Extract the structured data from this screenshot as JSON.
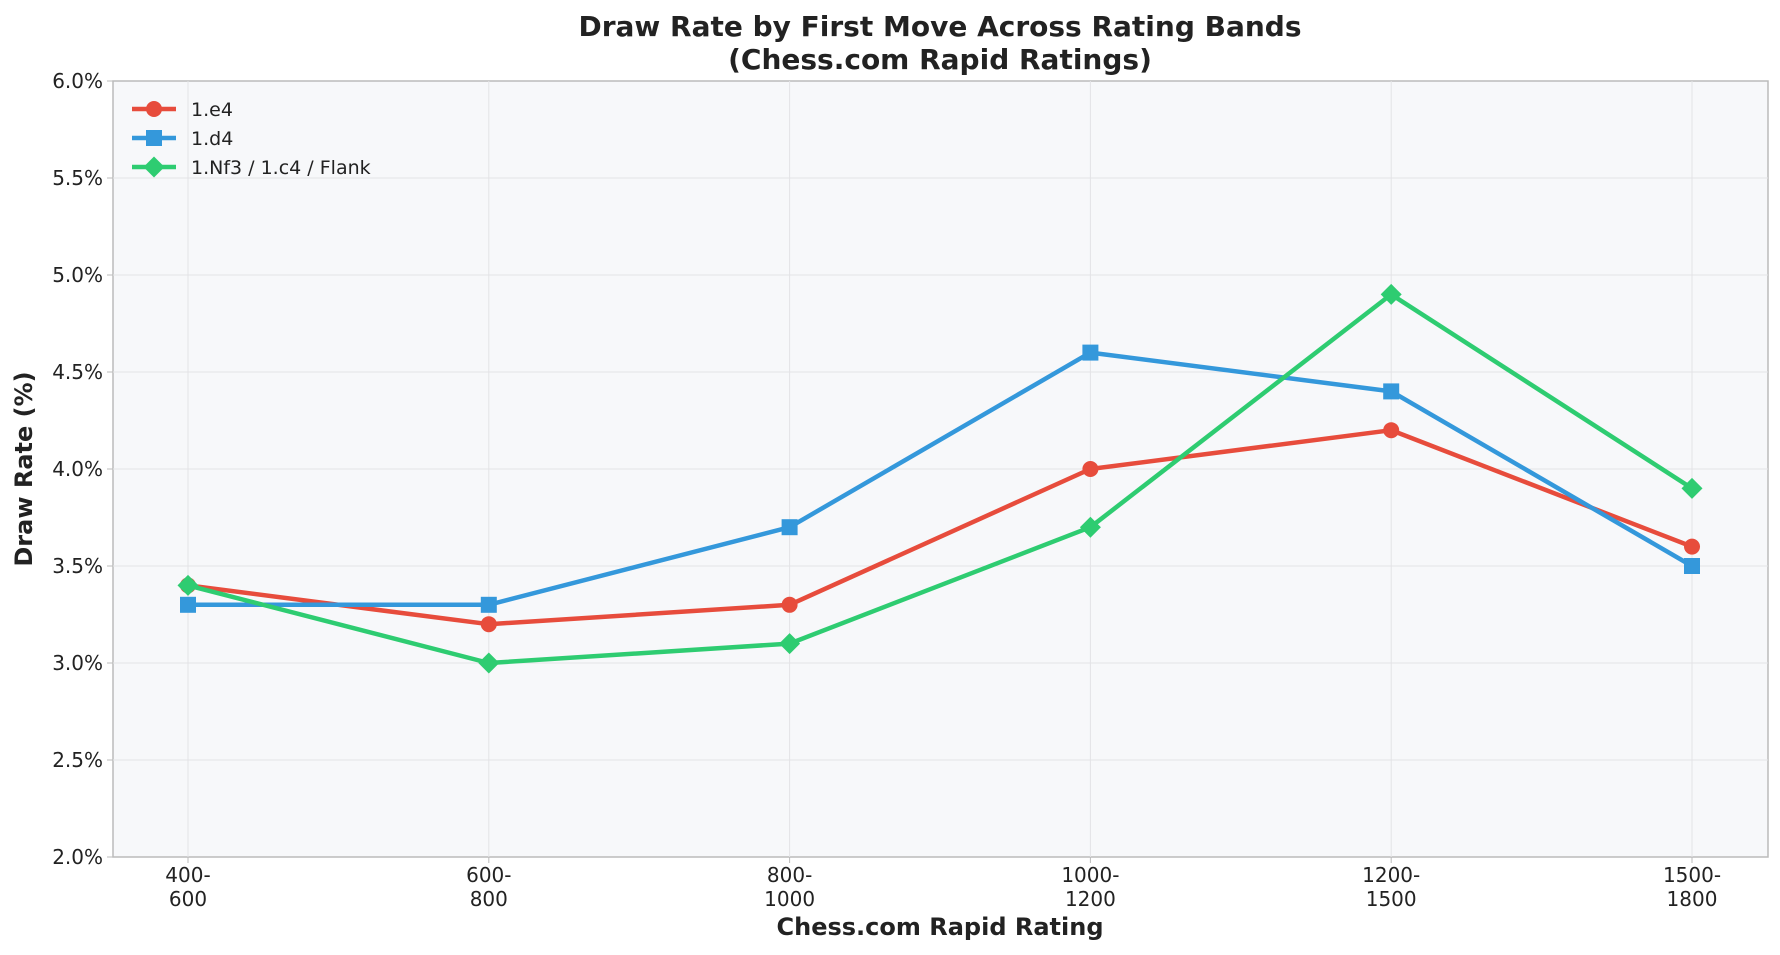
{
  "chart_data": {
    "type": "line",
    "title": "Draw Rate by First Move Across Rating Bands",
    "subtitle": "(Chess.com Rapid Ratings)",
    "xlabel": "Chess.com Rapid Rating",
    "ylabel": "Draw Rate (%)",
    "categories": [
      [
        "400-",
        "600"
      ],
      [
        "600-",
        "800"
      ],
      [
        "800-",
        "1000"
      ],
      [
        "1000-",
        "1200"
      ],
      [
        "1200-",
        "1500"
      ],
      [
        "1500-",
        "1800"
      ]
    ],
    "ylim": [
      2.0,
      6.0
    ],
    "yticks": [
      "2.0%",
      "2.5%",
      "3.0%",
      "3.5%",
      "4.0%",
      "4.5%",
      "5.0%",
      "5.5%",
      "6.0%"
    ],
    "grid": true,
    "legend_position": "top-left",
    "series": [
      {
        "name": "1.e4",
        "color": "#e74c3c",
        "marker": "circle",
        "values": [
          3.4,
          3.2,
          3.3,
          4.0,
          4.2,
          3.6
        ]
      },
      {
        "name": "1.d4",
        "color": "#3498db",
        "marker": "square",
        "values": [
          3.3,
          3.3,
          3.7,
          4.6,
          4.4,
          3.5
        ]
      },
      {
        "name": "1.Nf3 / 1.c4 / Flank",
        "color": "#2ecc71",
        "marker": "diamond",
        "values": [
          3.4,
          3.0,
          3.1,
          3.7,
          4.9,
          3.9
        ]
      }
    ]
  }
}
